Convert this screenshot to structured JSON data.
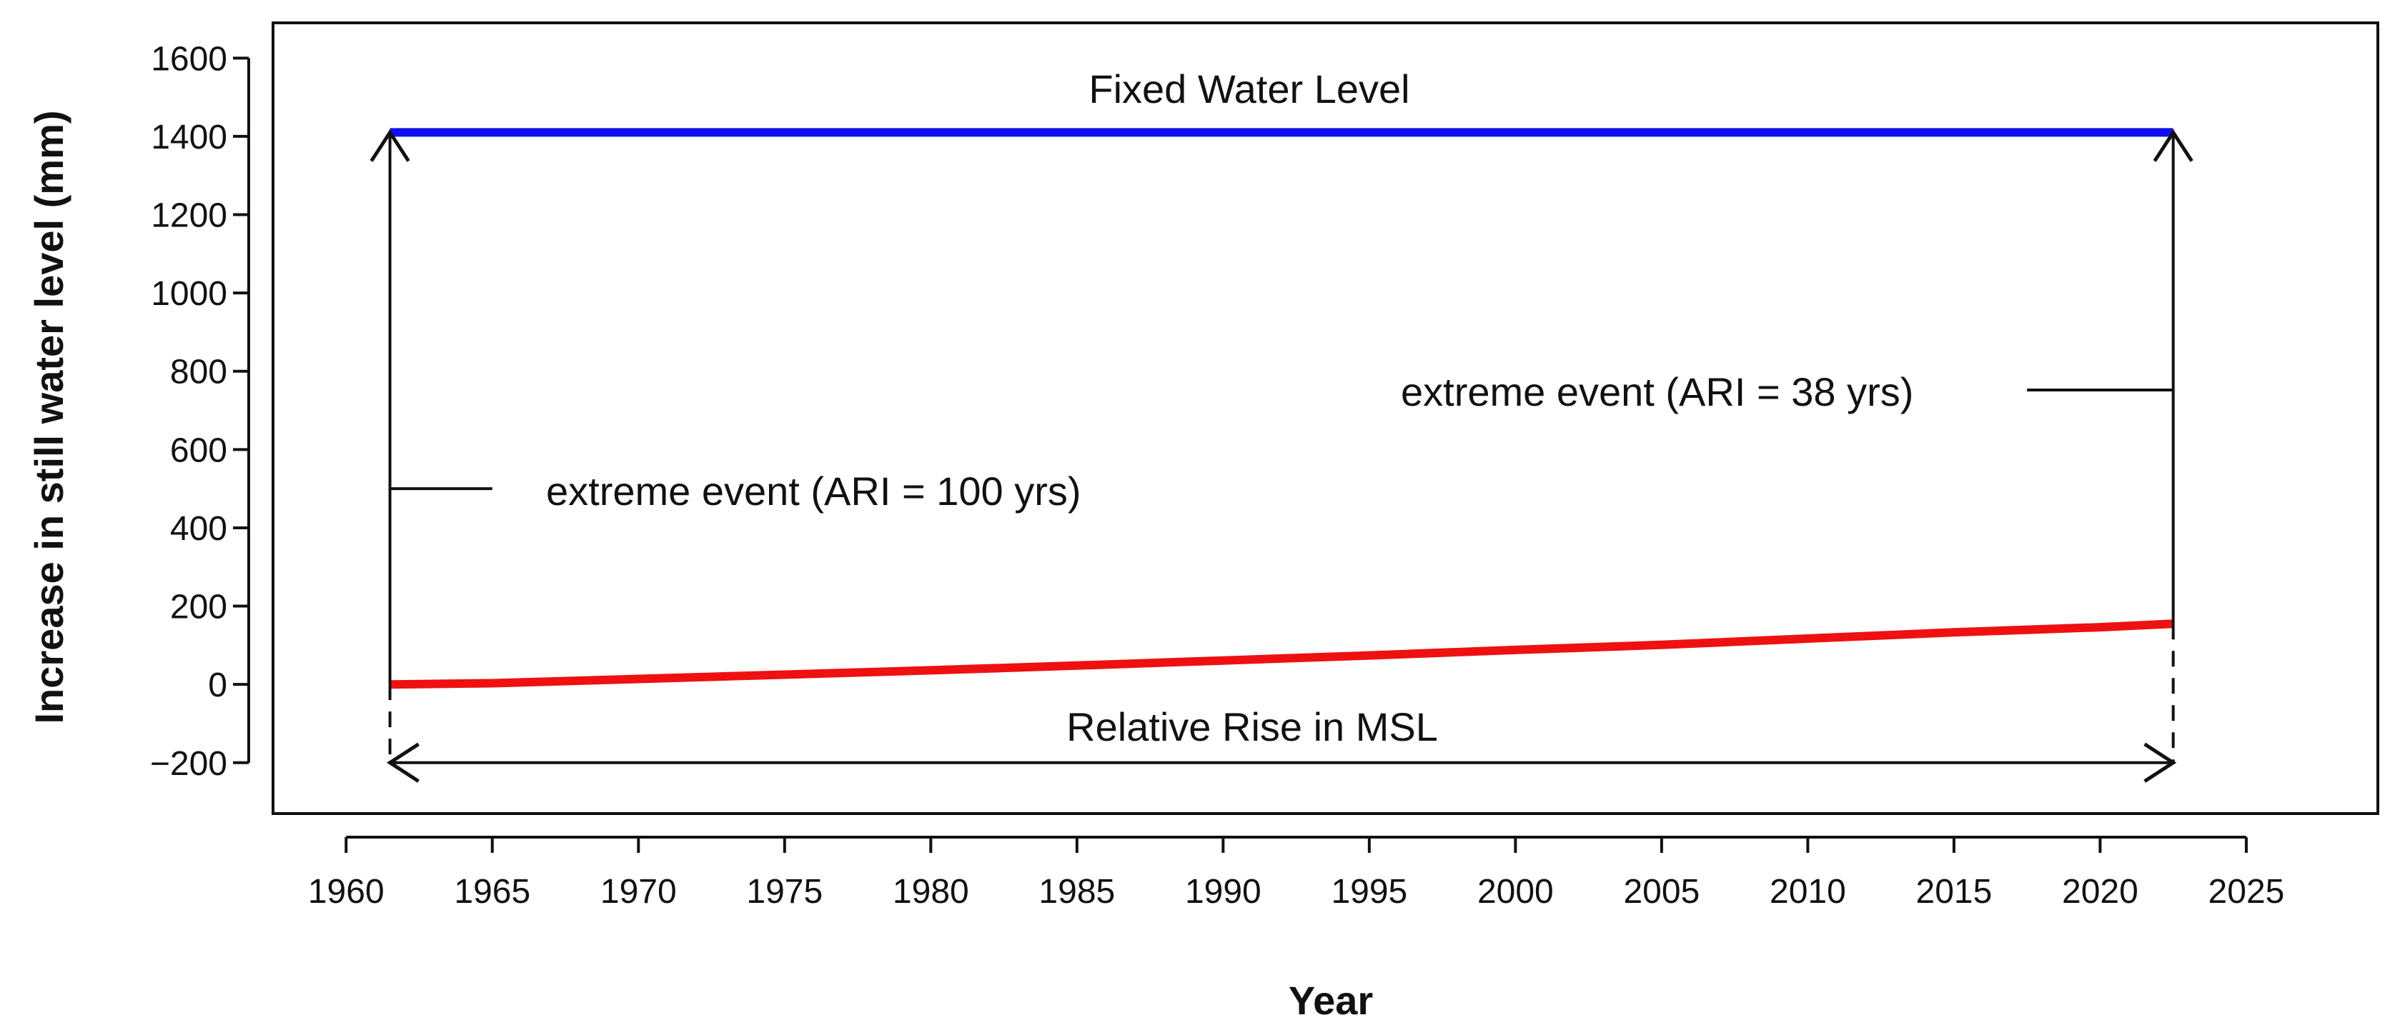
{
  "chart_data": {
    "type": "line",
    "title": "",
    "xlabel": "Year",
    "ylabel": "Increase in still water level (mm)",
    "xlim": [
      1957.5,
      2029.5
    ],
    "ylim": [
      -330,
      1690
    ],
    "xticks": [
      1960,
      1965,
      1970,
      1975,
      1980,
      1985,
      1990,
      1995,
      2000,
      2005,
      2010,
      2015,
      2020,
      2025
    ],
    "yticks": [
      -200,
      0,
      200,
      400,
      600,
      800,
      1000,
      1200,
      1400,
      1600
    ],
    "grid": false,
    "series": [
      {
        "name": "Fixed Water Level",
        "color": "#1010ee",
        "x": [
          1961.5,
          2022.5
        ],
        "y": [
          1410,
          1410
        ]
      },
      {
        "name": "Relative Rise in MSL",
        "color": "#ee1111",
        "x": [
          1961.5,
          1965,
          1970,
          1975,
          1980,
          1985,
          1990,
          1995,
          2000,
          2005,
          2010,
          2015,
          2020,
          2022.5
        ],
        "y": [
          0,
          3,
          14,
          25,
          36,
          48,
          61,
          74,
          88,
          101,
          117,
          133,
          146,
          155
        ]
      }
    ],
    "arrows": [
      {
        "name": "ari-100-arrow",
        "x": 1961.5,
        "y_from": 0,
        "y_to": 1410,
        "style": "solid",
        "head": "end"
      },
      {
        "name": "ari-38-arrow",
        "x": 2022.5,
        "y_from": 155,
        "y_to": 1410,
        "style": "solid",
        "head": "end"
      },
      {
        "name": "left-dashed-drop",
        "x": 1961.5,
        "y_from": 0,
        "y_to": -200,
        "style": "dashed",
        "head": "none"
      },
      {
        "name": "right-dashed-drop",
        "x": 2022.5,
        "y_from": 155,
        "y_to": -200,
        "style": "dashed",
        "head": "none"
      }
    ],
    "span_arrow": {
      "x_from": 1961.5,
      "x_to": 2022.5,
      "y": -200
    },
    "leaders": [
      {
        "name": "ari-100-leader",
        "x_from": 1961.5,
        "x_to": 1965.0,
        "y": 500
      },
      {
        "name": "ari-38-leader",
        "x_from": 2017.5,
        "x_to": 2022.5,
        "y": 752
      }
    ],
    "annotations": {
      "fixed_water_level": "Fixed Water Level",
      "ari_100": "extreme event (ARI = 100 yrs)",
      "ari_38": "extreme event (ARI = 38 yrs)",
      "relative_rise": "Relative Rise in MSL"
    }
  }
}
